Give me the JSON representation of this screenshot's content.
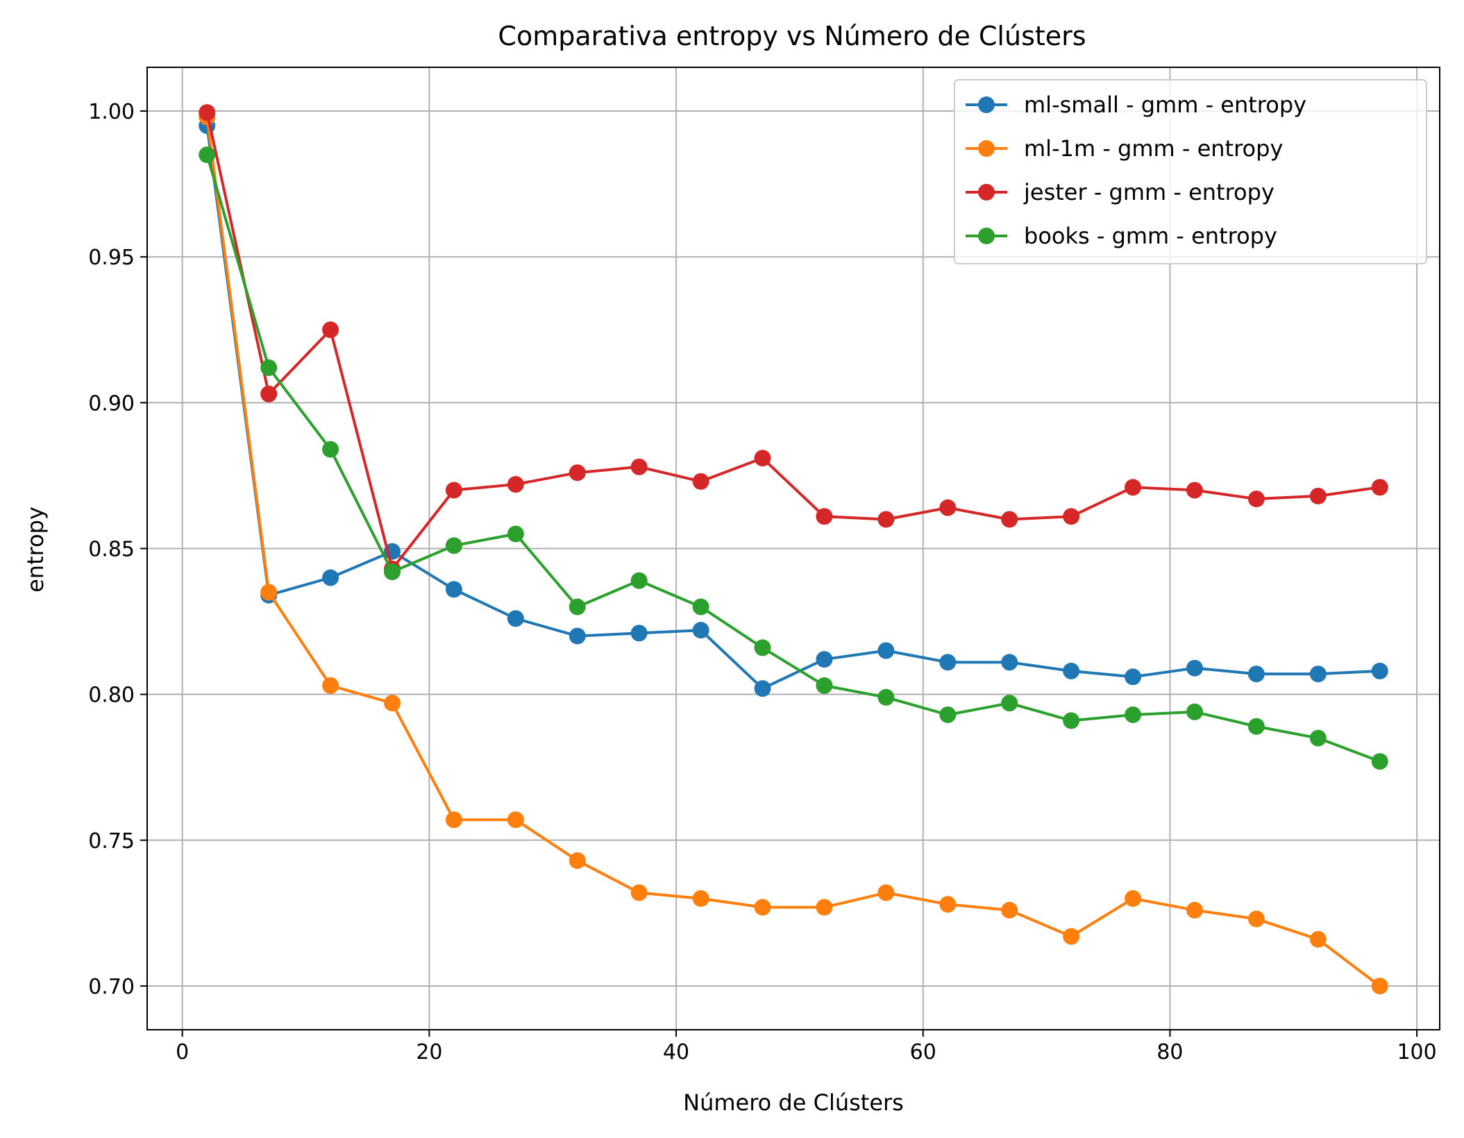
{
  "chart_data": {
    "type": "line",
    "title": "Comparativa entropy vs Número de Clústers",
    "xlabel": "Número de Clústers",
    "ylabel": "entropy",
    "xlim": [
      -2.85,
      101.85
    ],
    "ylim": [
      0.685,
      1.015
    ],
    "xticks": [
      0,
      20,
      40,
      60,
      80,
      100
    ],
    "xtick_labels": [
      "0",
      "20",
      "40",
      "60",
      "80",
      "100"
    ],
    "yticks": [
      0.7,
      0.75,
      0.8,
      0.85,
      0.9,
      0.95,
      1.0
    ],
    "ytick_labels": [
      "0.70",
      "0.75",
      "0.80",
      "0.85",
      "0.90",
      "0.95",
      "1.00"
    ],
    "grid": true,
    "legend_position": "top-right",
    "marker": "circle",
    "x": [
      2,
      7,
      12,
      17,
      22,
      27,
      32,
      37,
      42,
      47,
      52,
      57,
      62,
      67,
      72,
      77,
      82,
      87,
      92,
      97
    ],
    "series": [
      {
        "name": "ml-small - gmm - entropy",
        "color": "#1f77b4",
        "values": [
          0.995,
          0.834,
          0.84,
          0.849,
          0.836,
          0.826,
          0.82,
          0.821,
          0.822,
          0.802,
          0.812,
          0.815,
          0.811,
          0.811,
          0.808,
          0.806,
          0.809,
          0.807,
          0.807,
          0.808
        ]
      },
      {
        "name": "ml-1m - gmm - entropy",
        "color": "#ff7f0e",
        "values": [
          0.998,
          0.835,
          0.803,
          0.797,
          0.757,
          0.757,
          0.743,
          0.732,
          0.73,
          0.727,
          0.727,
          0.732,
          0.728,
          0.726,
          0.717,
          0.73,
          0.726,
          0.723,
          0.716,
          0.7
        ]
      },
      {
        "name": "jester - gmm - entropy",
        "color": "#d62728",
        "values": [
          0.9995,
          0.903,
          0.925,
          0.843,
          0.87,
          0.872,
          0.876,
          0.878,
          0.873,
          0.881,
          0.861,
          0.86,
          0.864,
          0.86,
          0.861,
          0.871,
          0.87,
          0.867,
          0.868,
          0.871
        ]
      },
      {
        "name": "books - gmm - entropy",
        "color": "#2ca02c",
        "values": [
          0.985,
          0.912,
          0.884,
          0.842,
          0.851,
          0.855,
          0.83,
          0.839,
          0.83,
          0.816,
          0.803,
          0.799,
          0.793,
          0.797,
          0.791,
          0.793,
          0.794,
          0.789,
          0.785,
          0.777
        ]
      }
    ]
  }
}
